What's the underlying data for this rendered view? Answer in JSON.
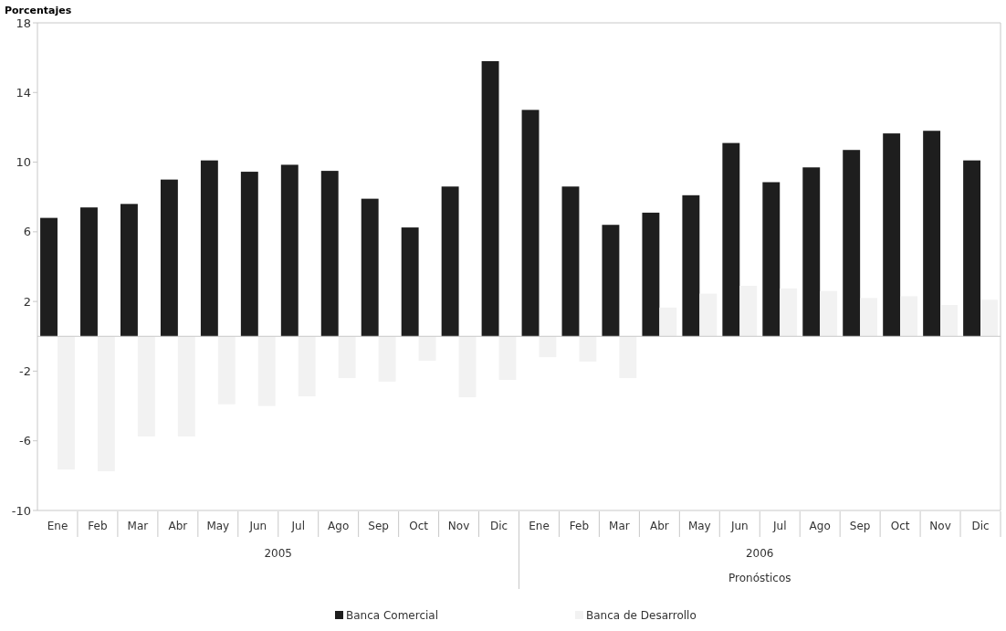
{
  "chart_data": {
    "type": "bar",
    "ylabel": "Porcentajes",
    "categories": [
      "Ene",
      "Feb",
      "Mar",
      "Abr",
      "May",
      "Jun",
      "Jul",
      "Ago",
      "Sep",
      "Oct",
      "Nov",
      "Dic",
      "Ene",
      "Feb",
      "Mar",
      "Abr",
      "May",
      "Jun",
      "Jul",
      "Ago",
      "Sep",
      "Oct",
      "Nov",
      "Dic"
    ],
    "series": [
      {
        "name": "Banca Comercial",
        "color": "#1e1e1e",
        "values": [
          6.8,
          7.4,
          7.6,
          9.0,
          10.1,
          9.45,
          9.85,
          9.5,
          7.9,
          6.25,
          8.6,
          15.8,
          13.0,
          8.6,
          6.4,
          7.1,
          8.1,
          11.1,
          8.85,
          9.7,
          10.7,
          11.65,
          11.8,
          10.1
        ]
      },
      {
        "name": "Banca de Desarrollo",
        "color": "#f2f2f2",
        "values": [
          -7.65,
          -7.75,
          -5.75,
          -5.75,
          -3.9,
          -4.0,
          -3.45,
          -2.4,
          -2.6,
          -1.4,
          -3.5,
          -2.5,
          -1.2,
          -1.45,
          -2.4,
          1.65,
          2.45,
          2.9,
          2.75,
          2.6,
          2.2,
          2.3,
          1.8,
          2.1
        ]
      }
    ],
    "ylim": [
      -10,
      18
    ],
    "yticks": [
      18,
      14,
      10,
      6,
      2,
      -2,
      -6,
      -10
    ],
    "annotations": [
      "2005",
      "2006",
      "Pronósticos"
    ],
    "legend": "bottom"
  }
}
